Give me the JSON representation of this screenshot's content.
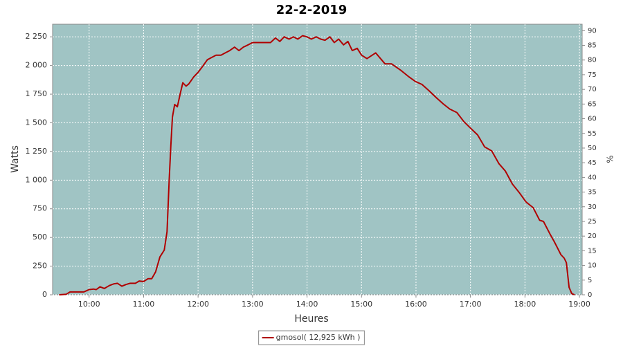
{
  "chart_data": {
    "type": "line",
    "title": "22-2-2019",
    "xlabel": "Heures",
    "ylabel": "Watts",
    "y2label": "%",
    "x": [
      9.45,
      9.58,
      9.65,
      9.9,
      10.0,
      10.08,
      10.13,
      10.2,
      10.28,
      10.37,
      10.45,
      10.52,
      10.6,
      10.68,
      10.75,
      10.85,
      10.92,
      11.0,
      11.08,
      11.15,
      11.22,
      11.3,
      11.38,
      11.43,
      11.47,
      11.5,
      11.53,
      11.57,
      11.62,
      11.67,
      11.72,
      11.78,
      11.83,
      11.92,
      12.0,
      12.08,
      12.17,
      12.25,
      12.33,
      12.42,
      12.5,
      12.58,
      12.67,
      12.75,
      12.83,
      12.92,
      13.0,
      13.17,
      13.33,
      13.42,
      13.5,
      13.58,
      13.67,
      13.75,
      13.83,
      13.92,
      14.0,
      14.08,
      14.17,
      14.25,
      14.33,
      14.42,
      14.5,
      14.58,
      14.67,
      14.75,
      14.83,
      14.92,
      15.0,
      15.1,
      15.26,
      15.43,
      15.55,
      15.73,
      15.86,
      15.99,
      16.11,
      16.24,
      16.37,
      16.5,
      16.62,
      16.75,
      16.88,
      17.01,
      17.13,
      17.26,
      17.39,
      17.52,
      17.64,
      17.77,
      17.89,
      18.02,
      18.15,
      18.27,
      18.34,
      18.47,
      18.53,
      18.59,
      18.66,
      18.72,
      18.76,
      18.81,
      18.86,
      18.91
    ],
    "series": [
      {
        "name": "gmosol( 12,925 kWh )",
        "color": "#b00000",
        "values": [
          0,
          5,
          25,
          25,
          45,
          50,
          45,
          70,
          55,
          80,
          95,
          100,
          75,
          90,
          100,
          100,
          120,
          115,
          140,
          140,
          200,
          330,
          390,
          550,
          1000,
          1300,
          1550,
          1660,
          1640,
          1750,
          1850,
          1820,
          1840,
          1900,
          1940,
          1990,
          2050,
          2070,
          2090,
          2090,
          2110,
          2130,
          2160,
          2130,
          2160,
          2180,
          2200,
          2200,
          2200,
          2240,
          2210,
          2250,
          2230,
          2250,
          2230,
          2260,
          2250,
          2230,
          2250,
          2230,
          2220,
          2250,
          2200,
          2230,
          2180,
          2210,
          2130,
          2150,
          2090,
          2060,
          2110,
          2015,
          2015,
          1955,
          1905,
          1860,
          1835,
          1780,
          1720,
          1665,
          1620,
          1590,
          1510,
          1450,
          1395,
          1290,
          1255,
          1145,
          1080,
          965,
          895,
          810,
          760,
          650,
          640,
          520,
          470,
          415,
          350,
          320,
          280,
          65,
          10,
          0
        ]
      }
    ],
    "xlim": [
      9.33,
      19.05
    ],
    "xticks": [
      {
        "value": 10,
        "label": "10:00"
      },
      {
        "value": 11,
        "label": "11:00"
      },
      {
        "value": 12,
        "label": "12:00"
      },
      {
        "value": 13,
        "label": "13:00"
      },
      {
        "value": 14,
        "label": "14:00"
      },
      {
        "value": 15,
        "label": "15:00"
      },
      {
        "value": 16,
        "label": "16:00"
      },
      {
        "value": 17,
        "label": "17:00"
      },
      {
        "value": 18,
        "label": "18:00"
      },
      {
        "value": 19,
        "label": "19:00"
      }
    ],
    "ylim": [
      0,
      2360
    ],
    "yticks": [
      0,
      250,
      500,
      750,
      {
        "value": 1000,
        "label": "1 000"
      },
      {
        "value": 1250,
        "label": "1 250"
      },
      {
        "value": 1500,
        "label": "1 500"
      },
      {
        "value": 1750,
        "label": "1 750"
      },
      {
        "value": 2000,
        "label": "2 000"
      },
      {
        "value": 2250,
        "label": "2 250"
      }
    ],
    "y2lim": [
      0,
      92.2
    ],
    "y2ticks": [
      0,
      5,
      10,
      15,
      20,
      25,
      30,
      35,
      40,
      45,
      50,
      55,
      60,
      65,
      70,
      75,
      80,
      85,
      90
    ],
    "grid": true,
    "background": "#a0c4c4",
    "legend": "bottom"
  }
}
